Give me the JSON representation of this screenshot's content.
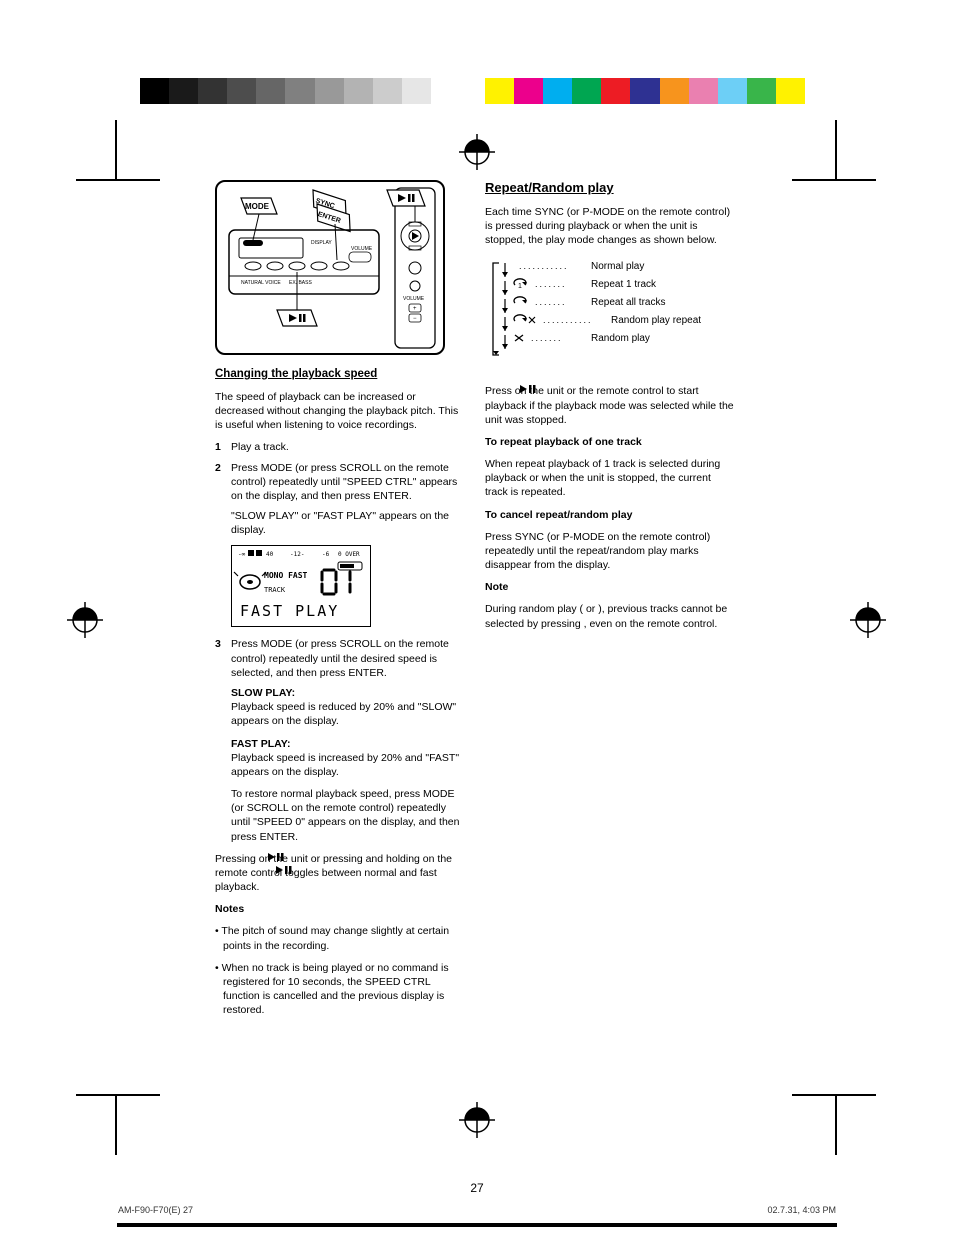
{
  "colorbar_grays": [
    "#000000",
    "#1a1a1a",
    "#333333",
    "#4d4d4d",
    "#666666",
    "#808080",
    "#999999",
    "#b3b3b3",
    "#cccccc",
    "#e6e6e6",
    "#ffffff"
  ],
  "colorbar_colors": [
    "#fff200",
    "#ec008c",
    "#00aeef",
    "#00a651",
    "#ed1c24",
    "#2e3192",
    "#f7941d",
    "#ea80b0",
    "#6dcff6",
    "#39b54a",
    "#fff200"
  ],
  "device": {
    "mode_label": "MODE",
    "sync_label": "SYNC",
    "enter_label": "ENTER",
    "volume_label": "VOLUME",
    "callout_labels": [
      "NATURAL VOICE",
      "EX. BASS"
    ]
  },
  "left": {
    "heading": "Changing the playback speed",
    "intro": "The speed of playback can be increased or decreased without changing the playback pitch. This is useful when listening to voice recordings.",
    "steps": [
      "Play a track.",
      "Press MODE (or press SCROLL on the remote control) repeatedly until \"SPEED CTRL\" appears on the display, and then press ENTER."
    ],
    "step2_note": "\"SLOW PLAY\" or \"FAST PLAY\" appears on the display.",
    "lcd": {
      "top_indicators": [
        "-∞",
        "40",
        "-12-",
        "-6",
        "0 OVER"
      ],
      "mono_fast": "MONO FAST",
      "track_label": "TRACK",
      "track_num_segments": "01",
      "bottom_text": "FAST PLAY"
    },
    "step3": "Press MODE (or press SCROLL on the remote control) repeatedly until the desired speed is selected, and then press ENTER.",
    "speed1_head": "SLOW PLAY:",
    "speed1_body": "Playback speed is reduced by 20% and \"SLOW\" appears on the display.",
    "speed2_head": "FAST PLAY:",
    "speed2_body": "Playback speed is increased by 20% and \"FAST\" appears on the display.",
    "restore": "To restore normal playback speed, press MODE (or SCROLL on the remote control) repeatedly until \"SPEED 0\" appears on the display, and then press ENTER.",
    "tip": "Pressing           on the unit or pressing and holding           on the remote control toggles between normal and fast playback.",
    "notes_head": "Notes",
    "notes": [
      "The pitch of sound may change slightly at certain points in the recording.",
      "When no track is being played or no command is registered for 10 seconds, the SPEED CTRL function is cancelled and the previous display is restored."
    ]
  },
  "right": {
    "heading": "Repeat/Random play",
    "intro_a": "Each time SYNC (or P-MODE on the remote control) is pressed during playback or when the unit is stopped, the play mode changes as shown below.",
    "diagram": {
      "rows": [
        {
          "icon": "none",
          "dots": "...........",
          "label": "Normal play"
        },
        {
          "icon": "repeat-1",
          "dots": ".......",
          "label": "Repeat 1 track"
        },
        {
          "icon": "repeat",
          "dots": ".......",
          "label": "Repeat all tracks"
        },
        {
          "icon": "repeat-shuffle",
          "dots": "...........",
          "label": "Random play repeat"
        },
        {
          "icon": "shuffle",
          "dots": ".......",
          "label": "Random play"
        }
      ]
    },
    "press_play": "Press           on the unit or the remote control to start playback if the playback mode was selected while the unit was stopped.",
    "one_track_head": "To repeat playback of one track",
    "one_track_body": "When repeat playback of 1 track is selected during playback or when the unit is stopped, the current track is repeated.",
    "cancel_head": "To cancel repeat/random play",
    "cancel_body": "Press SYNC (or P-MODE on the remote control) repeatedly until the repeat/random play marks disappear from the display.",
    "note_head": "Note",
    "note_body": "During random play (        or     ), previous tracks cannot be selected by pressing     , even on the remote control."
  },
  "page_number": "27",
  "footer_file": "AM-F90-F70(E)  27",
  "footer_date": "02.7.31, 4:03 PM"
}
